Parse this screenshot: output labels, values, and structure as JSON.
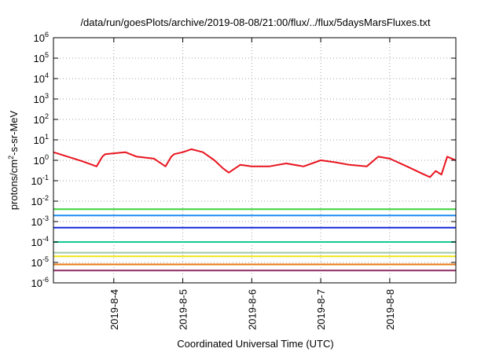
{
  "chart_data": {
    "type": "line",
    "title": "/data/run/goesPlots/archive/2019-08-08/21:00/flux/../flux/5daysMarsFluxes.txt",
    "xlabel": "Coordinated Universal Time (UTC)",
    "ylabel": {
      "main": "protons/cm",
      "sup": "2",
      "rest": "-s-sr-MeV"
    },
    "y_scale": "log",
    "ylim": [
      1e-06,
      1000000.0
    ],
    "yticks": [
      {
        "base": "10",
        "exp": "-6",
        "value": 1e-06
      },
      {
        "base": "10",
        "exp": "-5",
        "value": 1e-05
      },
      {
        "base": "10",
        "exp": "-4",
        "value": 0.0001
      },
      {
        "base": "10",
        "exp": "-3",
        "value": 0.001
      },
      {
        "base": "10",
        "exp": "-2",
        "value": 0.01
      },
      {
        "base": "10",
        "exp": "-1",
        "value": 0.1
      },
      {
        "base": "10",
        "exp": "0",
        "value": 1
      },
      {
        "base": "10",
        "exp": "1",
        "value": 10
      },
      {
        "base": "10",
        "exp": "2",
        "value": 100
      },
      {
        "base": "10",
        "exp": "3",
        "value": 1000
      },
      {
        "base": "10",
        "exp": "4",
        "value": 10000
      },
      {
        "base": "10",
        "exp": "5",
        "value": 100000
      },
      {
        "base": "10",
        "exp": "6",
        "value": 1000000
      }
    ],
    "xlim": [
      "2019-08-03 03:00",
      "2019-08-08 23:00"
    ],
    "xticks": [
      {
        "label": "2019-8-4",
        "value": "2019-08-04 00:00"
      },
      {
        "label": "2019-8-5",
        "value": "2019-08-05 00:00"
      },
      {
        "label": "2019-8-6",
        "value": "2019-08-06 00:00"
      },
      {
        "label": "2019-8-7",
        "value": "2019-08-07 00:00"
      },
      {
        "label": "2019-8-8",
        "value": "2019-08-08 00:00"
      }
    ],
    "grid": true,
    "series": [
      {
        "color": "#e8141e",
        "x": [
          "2019-08-03 03:00",
          "2019-08-03 08:00",
          "2019-08-03 13:00",
          "2019-08-03 18:00",
          "2019-08-03 20:00",
          "2019-08-03 21:00",
          "2019-08-04 00:00",
          "2019-08-04 04:00",
          "2019-08-04 08:00",
          "2019-08-04 14:00",
          "2019-08-04 18:00",
          "2019-08-04 20:00",
          "2019-08-04 21:00",
          "2019-08-05 00:00",
          "2019-08-05 03:00",
          "2019-08-05 07:00",
          "2019-08-05 11:00",
          "2019-08-05 14:00",
          "2019-08-05 16:00",
          "2019-08-05 20:00",
          "2019-08-06 00:00",
          "2019-08-06 06:00",
          "2019-08-06 12:00",
          "2019-08-06 18:00",
          "2019-08-07 00:00",
          "2019-08-07 05:00",
          "2019-08-07 10:00",
          "2019-08-07 16:00",
          "2019-08-07 20:00",
          "2019-08-08 00:00",
          "2019-08-08 06:00",
          "2019-08-08 12:00",
          "2019-08-08 14:00",
          "2019-08-08 16:00",
          "2019-08-08 18:00",
          "2019-08-08 20:00",
          "2019-08-08 23:00"
        ],
        "y": [
          2.5,
          1.5,
          0.9,
          0.5,
          1.5,
          2,
          2.2,
          2.5,
          1.5,
          1.2,
          0.5,
          1.5,
          2,
          2.5,
          3.5,
          2.5,
          1,
          0.4,
          0.25,
          0.6,
          0.5,
          0.5,
          0.7,
          0.5,
          1,
          0.8,
          0.6,
          0.5,
          1.5,
          1.2,
          0.5,
          0.2,
          0.15,
          0.3,
          0.2,
          1.5,
          1
        ]
      },
      {
        "color": "#3cd23c",
        "x": [
          "2019-08-03 03:00",
          "2019-08-08 23:00"
        ],
        "y": [
          0.004,
          0.004
        ]
      },
      {
        "color": "#1e8cf0",
        "x": [
          "2019-08-03 03:00",
          "2019-08-08 23:00"
        ],
        "y": [
          0.002,
          0.002
        ]
      },
      {
        "color": "#1428dc",
        "x": [
          "2019-08-03 03:00",
          "2019-08-08 23:00"
        ],
        "y": [
          0.0005,
          0.0005
        ]
      },
      {
        "color": "#14c896",
        "x": [
          "2019-08-03 03:00",
          "2019-08-08 23:00"
        ],
        "y": [
          0.0001,
          0.0001
        ]
      },
      {
        "color": "#a0c8aa",
        "x": [
          "2019-08-03 03:00",
          "2019-08-08 23:00"
        ],
        "y": [
          3e-05,
          3e-05
        ]
      },
      {
        "color": "#f0e614",
        "x": [
          "2019-08-03 03:00",
          "2019-08-08 23:00"
        ],
        "y": [
          2e-05,
          2e-05
        ]
      },
      {
        "color": "#e67814",
        "x": [
          "2019-08-03 03:00",
          "2019-08-08 23:00"
        ],
        "y": [
          8e-06,
          8e-06
        ]
      },
      {
        "color": "#8c2864",
        "x": [
          "2019-08-03 03:00",
          "2019-08-08 23:00"
        ],
        "y": [
          4e-06,
          4e-06
        ]
      }
    ]
  }
}
